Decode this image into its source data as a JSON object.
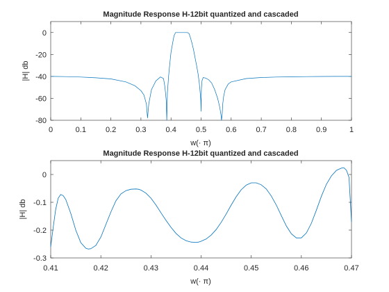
{
  "chart_data": [
    {
      "type": "line",
      "title": "Magnitude Response H-12bit quantized and cascaded",
      "xlabel": "w(· π)",
      "ylabel": "|H| db",
      "xlim": [
        0,
        1
      ],
      "ylim": [
        -80,
        10
      ],
      "xticks": [
        "0",
        "0.1",
        "0.2",
        "0.3",
        "0.4",
        "0.5",
        "0.6",
        "0.7",
        "0.8",
        "0.9",
        "1"
      ],
      "yticks": [
        "0",
        "-20",
        "-40",
        "-60",
        "-80"
      ],
      "grid": false,
      "color": "#0072bd",
      "series": [
        {
          "x": [
            0,
            0.05,
            0.1,
            0.15,
            0.2,
            0.25,
            0.28,
            0.3,
            0.31,
            0.318,
            0.322,
            0.326,
            0.335,
            0.35,
            0.365,
            0.375,
            0.38,
            0.384,
            0.386,
            0.388,
            0.392,
            0.396,
            0.4,
            0.405,
            0.41,
            0.415,
            0.42,
            0.425,
            0.43,
            0.435,
            0.44,
            0.445,
            0.45,
            0.455,
            0.46,
            0.465,
            0.47,
            0.475,
            0.48,
            0.485,
            0.49,
            0.494,
            0.497,
            0.499,
            0.5,
            0.501,
            0.503,
            0.507,
            0.515,
            0.525,
            0.535,
            0.545,
            0.555,
            0.562,
            0.566,
            0.568,
            0.57,
            0.572,
            0.575,
            0.58,
            0.59,
            0.6,
            0.65,
            0.7,
            0.75,
            0.8,
            0.85,
            0.9,
            0.95,
            1.0
          ],
          "y": [
            -40,
            -40.2,
            -40.6,
            -41.3,
            -42.3,
            -45,
            -48.5,
            -53,
            -57,
            -65,
            -78,
            -65,
            -52,
            -44,
            -40.5,
            -42,
            -50,
            -62,
            -80,
            -55,
            -40,
            -28,
            -18,
            -10,
            -3,
            0,
            0,
            0,
            0,
            0,
            0,
            0,
            0,
            0,
            -1,
            -5,
            -10,
            -16,
            -23,
            -30,
            -38,
            -46,
            -55,
            -62,
            -72,
            -52,
            -44,
            -41,
            -41.5,
            -43,
            -46,
            -52,
            -60,
            -68,
            -75,
            -80,
            -75,
            -65,
            -58,
            -52,
            -47,
            -45,
            -42,
            -41,
            -40.6,
            -40.4,
            -40.2,
            -40.1,
            -40,
            -40
          ]
        }
      ]
    },
    {
      "type": "line",
      "title": "Magnitude Response H-12bit quantized and cascaded",
      "xlabel": "w(· π)",
      "ylabel": "|H| db",
      "xlim": [
        0.41,
        0.47
      ],
      "ylim": [
        -0.3,
        0.05
      ],
      "xticks": [
        "0.41",
        "0.42",
        "0.43",
        "0.44",
        "0.45",
        "0.46",
        "0.47"
      ],
      "yticks": [
        "0",
        "-0.1",
        "-0.2",
        "-0.3"
      ],
      "grid": false,
      "color": "#0072bd",
      "series": [
        {
          "x": [
            0.41,
            0.4105,
            0.411,
            0.4115,
            0.412,
            0.4125,
            0.413,
            0.414,
            0.415,
            0.416,
            0.417,
            0.4175,
            0.418,
            0.419,
            0.42,
            0.421,
            0.422,
            0.423,
            0.424,
            0.425,
            0.426,
            0.427,
            0.4275,
            0.428,
            0.429,
            0.43,
            0.431,
            0.432,
            0.433,
            0.434,
            0.435,
            0.436,
            0.437,
            0.438,
            0.439,
            0.4395,
            0.44,
            0.441,
            0.442,
            0.443,
            0.444,
            0.445,
            0.446,
            0.447,
            0.448,
            0.449,
            0.45,
            0.451,
            0.452,
            0.453,
            0.454,
            0.455,
            0.456,
            0.457,
            0.458,
            0.459,
            0.46,
            0.461,
            0.462,
            0.463,
            0.464,
            0.465,
            0.466,
            0.467,
            0.468,
            0.4685,
            0.469,
            0.4695,
            0.47
          ],
          "y": [
            -0.26,
            -0.19,
            -0.125,
            -0.085,
            -0.072,
            -0.076,
            -0.09,
            -0.14,
            -0.2,
            -0.245,
            -0.265,
            -0.268,
            -0.267,
            -0.255,
            -0.225,
            -0.18,
            -0.135,
            -0.095,
            -0.07,
            -0.058,
            -0.053,
            -0.052,
            -0.053,
            -0.056,
            -0.067,
            -0.085,
            -0.11,
            -0.138,
            -0.165,
            -0.19,
            -0.212,
            -0.228,
            -0.238,
            -0.243,
            -0.244,
            -0.243,
            -0.24,
            -0.232,
            -0.218,
            -0.198,
            -0.172,
            -0.142,
            -0.11,
            -0.08,
            -0.055,
            -0.038,
            -0.03,
            -0.03,
            -0.037,
            -0.052,
            -0.077,
            -0.11,
            -0.148,
            -0.185,
            -0.213,
            -0.228,
            -0.228,
            -0.21,
            -0.175,
            -0.128,
            -0.078,
            -0.035,
            -0.005,
            0.015,
            0.023,
            0.024,
            0.015,
            -0.01,
            -0.17
          ]
        }
      ]
    }
  ]
}
